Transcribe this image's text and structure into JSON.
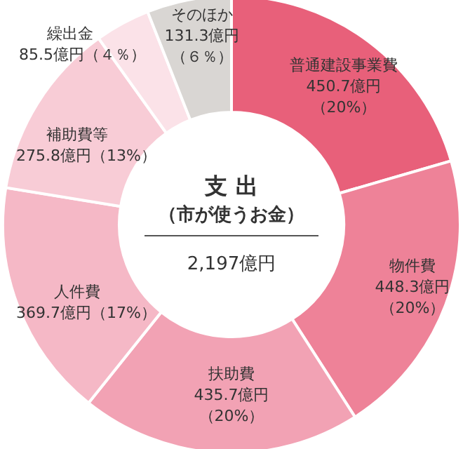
{
  "chart_data": {
    "type": "donut",
    "title": "支 出",
    "subtitle": "（市が使うお金）",
    "annotations": [
      "2,197億円",
      {
        "text": "（20%）",
        "x": "普通建設事業費"
      },
      {
        "text": "（20%）",
        "x": "物件費"
      },
      {
        "text": "（20%）",
        "x": "扶助費"
      },
      {
        "text": "（17%）",
        "x": "人件費"
      },
      {
        "text": "（13%）",
        "x": "補助費等"
      },
      {
        "text": "（４％）",
        "x": "繰出金"
      },
      {
        "text": "（６％）",
        "x": "そのほか"
      }
    ],
    "categories": [
      "普通建設事業費",
      "物件費",
      "扶助費",
      "人件費",
      "補助費等",
      "繰出金",
      "そのほか"
    ],
    "values": [
      450.7,
      448.3,
      435.7,
      369.7,
      275.8,
      85.5,
      131.3
    ],
    "value_labels": [
      "450.7億円",
      "448.3億円",
      "435.7億円",
      "369.7億円",
      "275.8億円",
      "85.5億円",
      "131.3億円"
    ],
    "colors": [
      "#e8607a",
      "#ee8298",
      "#f2a2b4",
      "#f5b8c6",
      "#f8ccd6",
      "#fbe2e8",
      "#d9d6d3"
    ]
  }
}
